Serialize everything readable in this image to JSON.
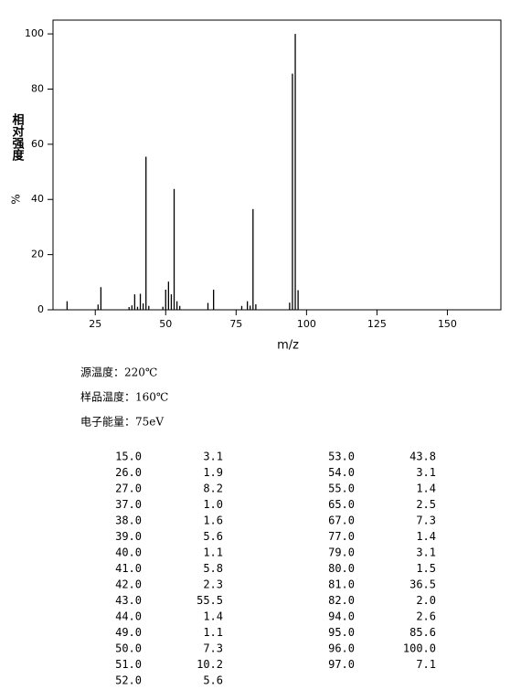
{
  "chart_data": {
    "type": "bar",
    "ylabel": "相对强度",
    "ylabel_unit": "%",
    "xlabel": "m/z",
    "x": [
      15,
      26,
      27,
      37,
      38,
      39,
      40,
      41,
      42,
      43,
      44,
      49,
      50,
      51,
      52,
      53,
      54,
      55,
      65,
      67,
      77,
      79,
      80,
      81,
      82,
      94,
      95,
      96,
      97
    ],
    "x_labels": [
      "15.0",
      "26.0",
      "27.0",
      "37.0",
      "38.0",
      "39.0",
      "40.0",
      "41.0",
      "42.0",
      "43.0",
      "44.0",
      "49.0",
      "50.0",
      "51.0",
      "52.0",
      "53.0",
      "54.0",
      "55.0",
      "65.0",
      "67.0",
      "77.0",
      "79.0",
      "80.0",
      "81.0",
      "82.0",
      "94.0",
      "95.0",
      "96.0",
      "97.0"
    ],
    "values": [
      3.1,
      1.9,
      8.2,
      1.0,
      1.6,
      5.6,
      1.1,
      5.8,
      2.3,
      55.5,
      1.4,
      1.1,
      7.3,
      10.2,
      5.6,
      43.8,
      3.1,
      1.4,
      2.5,
      7.3,
      1.4,
      3.1,
      1.5,
      36.5,
      2.0,
      2.6,
      85.6,
      100.0,
      7.1
    ],
    "value_labels": [
      "3.1",
      "1.9",
      "8.2",
      "1.0",
      "1.6",
      "5.6",
      "1.1",
      "5.8",
      "2.3",
      "55.5",
      "1.4",
      "1.1",
      "7.3",
      "10.2",
      "5.6",
      "43.8",
      "3.1",
      "1.4",
      "2.5",
      "7.3",
      "1.4",
      "3.1",
      "1.5",
      "36.5",
      "2.0",
      "2.6",
      "85.6",
      "100.0",
      "7.1"
    ],
    "color": "#000000",
    "xlim": [
      10,
      169
    ],
    "xticks": [
      25,
      50,
      75,
      100,
      125,
      150
    ],
    "ylim": [
      0,
      105
    ],
    "yticks": [
      0,
      20,
      40,
      60,
      80,
      100
    ],
    "grid": false
  },
  "conditions": [
    "源温度：220℃",
    "样品温度：160℃",
    "电子能量：75eV"
  ]
}
